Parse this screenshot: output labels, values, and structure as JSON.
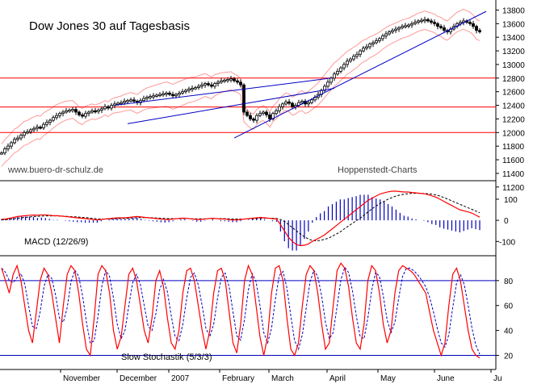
{
  "chart_data": [
    {
      "type": "candlestick",
      "title": "Dow Jones 30 auf Tagesbasis",
      "watermark_left": "www.buero-dr-schulz.de",
      "watermark_right": "Hoppenstedt-Charts",
      "yticks": [
        11200,
        11400,
        11600,
        11800,
        12000,
        12200,
        12400,
        12600,
        12800,
        13000,
        13200,
        13400,
        13600,
        13800
      ],
      "ylim": [
        11150,
        13900
      ],
      "horizontal_levels": [
        12000,
        12375,
        12800
      ],
      "level_color": "#ff0000",
      "trend_color": "#0000c0",
      "band_color": "#ff9999",
      "close_series": [
        11700,
        11760,
        11800,
        11850,
        11900,
        11920,
        11960,
        12000,
        12010,
        12040,
        12060,
        12080,
        12070,
        12120,
        12150,
        12180,
        12220,
        12250,
        12280,
        12300,
        12320,
        12330,
        12340,
        12300,
        12260,
        12240,
        12280,
        12300,
        12320,
        12310,
        12330,
        12350,
        12380,
        12360,
        12400,
        12420,
        12430,
        12440,
        12460,
        12470,
        12480,
        12460,
        12440,
        12470,
        12500,
        12520,
        12530,
        12540,
        12550,
        12560,
        12570,
        12580,
        12560,
        12540,
        12560,
        12580,
        12600,
        12620,
        12640,
        12650,
        12660,
        12680,
        12700,
        12720,
        12700,
        12680,
        12720,
        12740,
        12760,
        12770,
        12780,
        12790,
        12760,
        12740,
        12700,
        12300,
        12250,
        12200,
        12180,
        12250,
        12280,
        12300,
        12260,
        12200,
        12280,
        12320,
        12380,
        12420,
        12450,
        12430,
        12380,
        12400,
        12440,
        12460,
        12420,
        12440,
        12480,
        12520,
        12560,
        12620,
        12680,
        12740,
        12800,
        12860,
        12900,
        12950,
        13000,
        13050,
        13080,
        13120,
        13150,
        13200,
        13240,
        13260,
        13300,
        13320,
        13350,
        13380,
        13420,
        13450,
        13480,
        13500,
        13520,
        13540,
        13560,
        13570,
        13580,
        13600,
        13620,
        13640,
        13650,
        13660,
        13640,
        13620,
        13600,
        13560,
        13540,
        13500,
        13480,
        13520,
        13560,
        13600,
        13620,
        13640,
        13620,
        13600,
        13560,
        13500,
        13480
      ]
    },
    {
      "type": "line",
      "label": "MACD (12/26/9)",
      "yticks": [
        100,
        0,
        -100
      ],
      "ylim": [
        -160,
        180
      ],
      "macd_color": "#ff0000",
      "signal_color": "#000000",
      "histogram_color": "#0000c0",
      "macd": [
        5,
        6,
        10,
        14,
        18,
        20,
        22,
        24,
        25,
        24,
        26,
        26,
        24,
        22,
        22,
        20,
        18,
        16,
        14,
        12,
        10,
        8,
        6,
        4,
        2,
        4,
        6,
        8,
        10,
        12,
        12,
        12,
        14,
        16,
        18,
        16,
        14,
        12,
        10,
        8,
        6,
        4,
        4,
        6,
        8,
        10,
        10,
        8,
        6,
        4,
        4,
        6,
        8,
        10,
        8,
        6,
        6,
        4,
        2,
        2,
        4,
        6,
        8,
        10,
        12,
        14,
        12,
        10,
        8,
        6,
        -20,
        -50,
        -80,
        -100,
        -115,
        -120,
        -118,
        -112,
        -100,
        -90,
        -80,
        -70,
        -55,
        -40,
        -25,
        -10,
        5,
        20,
        35,
        50,
        65,
        80,
        95,
        105,
        115,
        125,
        130,
        135,
        138,
        138,
        136,
        134,
        134,
        132,
        130,
        128,
        126,
        122,
        116,
        110,
        100,
        90,
        80,
        70,
        60,
        50,
        45,
        40,
        35,
        25,
        15
      ],
      "signal": [
        2,
        3,
        5,
        7,
        10,
        12,
        14,
        16,
        18,
        19,
        20,
        21,
        21,
        21,
        21,
        20,
        19,
        18,
        17,
        16,
        14,
        13,
        11,
        9,
        7,
        6,
        6,
        6,
        7,
        8,
        9,
        9,
        10,
        11,
        12,
        13,
        13,
        13,
        12,
        11,
        10,
        9,
        8,
        8,
        8,
        8,
        8,
        8,
        7,
        7,
        7,
        7,
        8,
        8,
        8,
        8,
        8,
        7,
        6,
        6,
        6,
        6,
        7,
        7,
        8,
        9,
        10,
        10,
        10,
        9,
        4,
        -5,
        -20,
        -35,
        -50,
        -65,
        -78,
        -88,
        -95,
        -97,
        -95,
        -90,
        -85,
        -75,
        -65,
        -55,
        -40,
        -28,
        -15,
        -2,
        10,
        25,
        40,
        55,
        68,
        80,
        90,
        100,
        108,
        115,
        120,
        124,
        126,
        128,
        128,
        128,
        127,
        126,
        124,
        120,
        115,
        108,
        100,
        92,
        84,
        76,
        68,
        60,
        52,
        44,
        36
      ]
    },
    {
      "type": "line",
      "label": "Slow Stochastik (5/3/3)",
      "yticks": [
        80,
        60,
        40,
        20
      ],
      "ylim": [
        10,
        98
      ],
      "stoch_color": "#ff0000",
      "signal_color": "#0000c0",
      "level_lines": [
        80,
        20
      ],
      "k": [
        90,
        80,
        70,
        85,
        92,
        80,
        60,
        40,
        30,
        55,
        80,
        90,
        85,
        70,
        50,
        30,
        60,
        85,
        92,
        88,
        70,
        45,
        25,
        20,
        50,
        85,
        92,
        88,
        70,
        40,
        25,
        35,
        60,
        85,
        90,
        80,
        60,
        40,
        30,
        50,
        80,
        88,
        75,
        50,
        30,
        25,
        40,
        70,
        88,
        90,
        80,
        60,
        40,
        25,
        40,
        70,
        88,
        90,
        80,
        55,
        30,
        22,
        45,
        80,
        92,
        85,
        60,
        35,
        20,
        35,
        70,
        90,
        92,
        80,
        50,
        25,
        20,
        30,
        60,
        85,
        92,
        88,
        70,
        45,
        25,
        30,
        60,
        88,
        94,
        90,
        75,
        50,
        30,
        25,
        45,
        80,
        92,
        88,
        70,
        45,
        30,
        40,
        70,
        88,
        92,
        90,
        88,
        85,
        80,
        75,
        70,
        55,
        40,
        30,
        20,
        30,
        60,
        85,
        90,
        80,
        60,
        40,
        25,
        20,
        18
      ]
    }
  ],
  "x_axis": {
    "months": [
      "November",
      "December",
      "2007",
      "February",
      "March",
      "April",
      "May",
      "June",
      "Ju"
    ]
  }
}
